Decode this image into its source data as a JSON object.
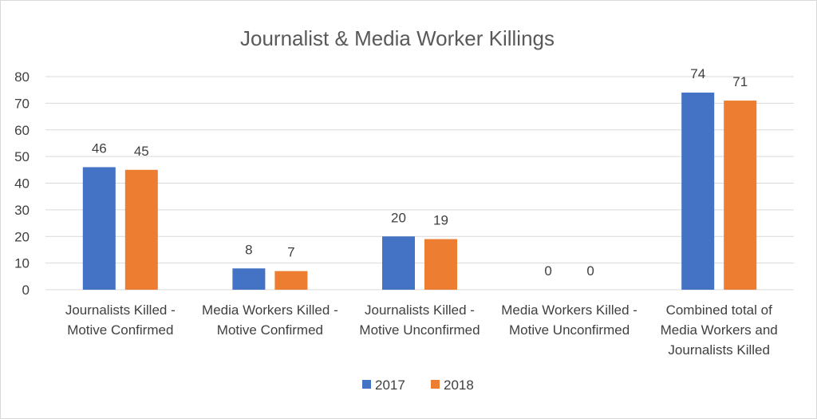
{
  "chart_data": {
    "type": "bar",
    "title": "Journalist & Media Worker Killings",
    "xlabel": "",
    "ylabel": "",
    "ylim": [
      0,
      80
    ],
    "yticks": [
      0,
      10,
      20,
      30,
      40,
      50,
      60,
      70,
      80
    ],
    "grid": true,
    "legend_position": "bottom",
    "categories": [
      [
        "Journalists Killed -",
        "Motive Confirmed"
      ],
      [
        "Media Workers Killed -",
        "Motive Confirmed"
      ],
      [
        "Journalists Killed -",
        "Motive Unconfirmed"
      ],
      [
        "Media Workers Killed -",
        "Motive Unconfirmed"
      ],
      [
        "Combined total of",
        "Media Workers and",
        "Journalists Killed"
      ]
    ],
    "series": [
      {
        "name": "2017",
        "color": "#4472c4",
        "values": [
          46,
          8,
          20,
          0,
          74
        ]
      },
      {
        "name": "2018",
        "color": "#ed7d31",
        "values": [
          45,
          7,
          19,
          0,
          71
        ]
      }
    ]
  }
}
